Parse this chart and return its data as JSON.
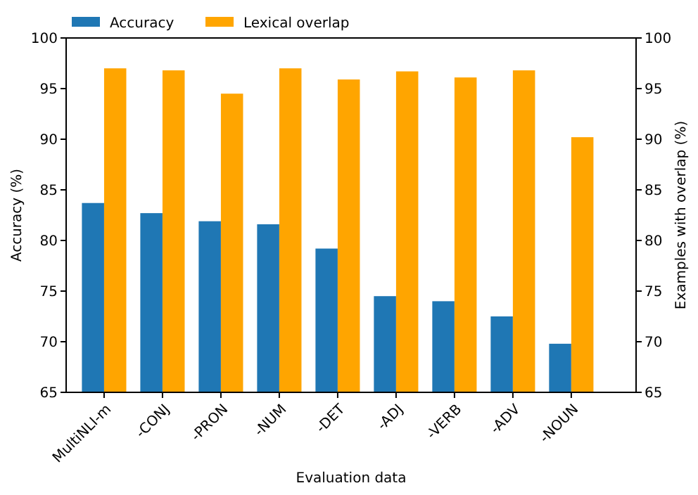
{
  "chart_data": {
    "type": "bar",
    "xlabel": "Evaluation data",
    "ylabel": "Accuracy (%)",
    "y2label": "Examples with overlap (%)",
    "categories": [
      "MultiNLI-m",
      "-CONJ",
      "-PRON",
      "-NUM",
      "-DET",
      "-ADJ",
      "-VERB",
      "-ADV",
      "-NOUN"
    ],
    "series": [
      {
        "name": "Accuracy",
        "color": "#1f77b4",
        "values": [
          83.7,
          82.7,
          81.9,
          81.6,
          79.2,
          74.5,
          74.0,
          72.5,
          69.8
        ]
      },
      {
        "name": "Lexical overlap",
        "color": "#ffa500",
        "values": [
          97.0,
          96.8,
          94.5,
          97.0,
          95.9,
          96.7,
          96.1,
          96.8,
          90.2
        ]
      }
    ],
    "ylim": [
      65,
      100
    ],
    "yticks": [
      65,
      70,
      75,
      80,
      85,
      90,
      95,
      100
    ],
    "y2lim": [
      65,
      100
    ],
    "y2ticks": [
      65,
      70,
      75,
      80,
      85,
      90,
      95,
      100
    ],
    "grid": false,
    "legend": "top left"
  }
}
